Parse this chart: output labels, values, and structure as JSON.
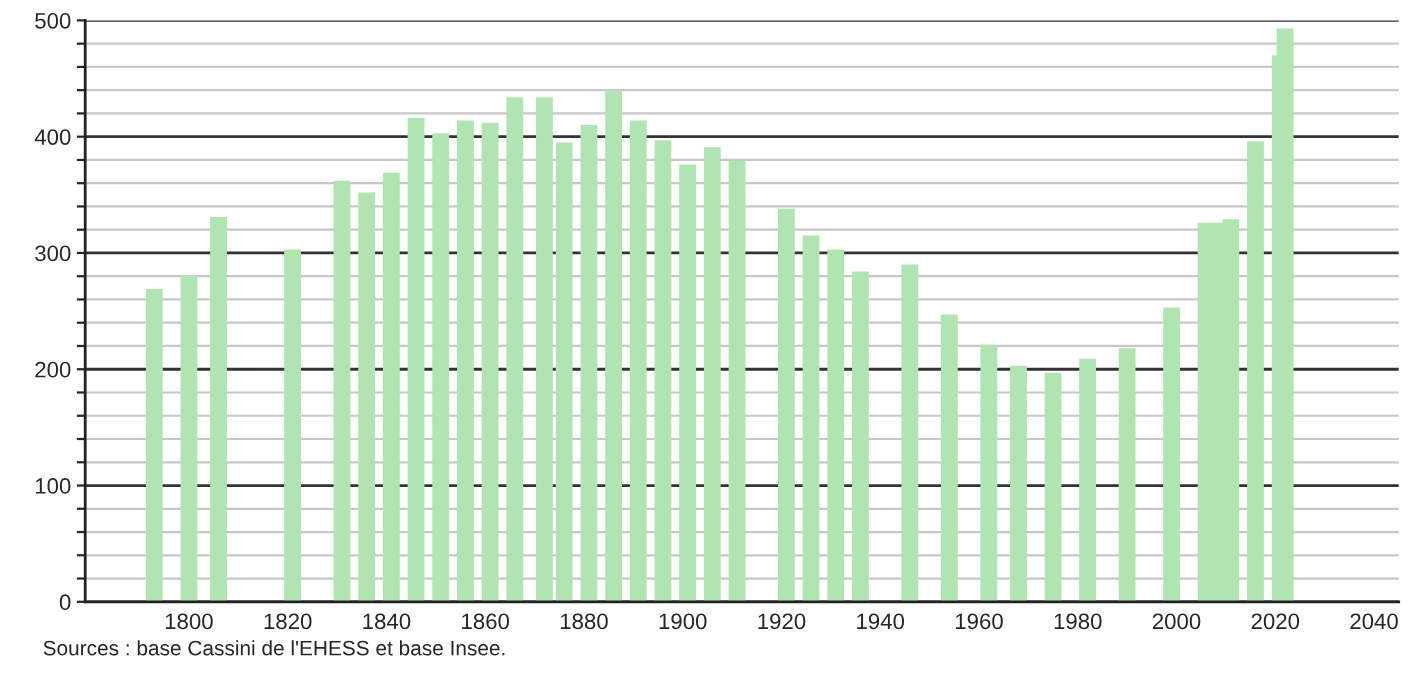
{
  "chart_data": {
    "type": "bar",
    "x": [
      1793,
      1800,
      1806,
      1821,
      1831,
      1836,
      1841,
      1846,
      1851,
      1856,
      1861,
      1866,
      1872,
      1876,
      1881,
      1886,
      1891,
      1896,
      1901,
      1906,
      1911,
      1921,
      1926,
      1931,
      1936,
      1946,
      1954,
      1962,
      1968,
      1975,
      1982,
      1990,
      1999,
      2006,
      2008,
      2011,
      2016,
      2021,
      2022
    ],
    "values": [
      269,
      281,
      331,
      303,
      362,
      352,
      369,
      416,
      403,
      414,
      412,
      434,
      434,
      395,
      410,
      439,
      414,
      397,
      376,
      391,
      379,
      338,
      315,
      303,
      284,
      290,
      247,
      221,
      203,
      197,
      209,
      218,
      253,
      326,
      326,
      329,
      396,
      470,
      493
    ],
    "color": "#b0e4b0",
    "xlim": [
      1779,
      2045
    ],
    "xticks": [
      1800,
      1820,
      1840,
      1860,
      1880,
      1900,
      1920,
      1940,
      1960,
      1980,
      2000,
      2020,
      2040
    ],
    "ylim": [
      0,
      500
    ],
    "yticks": [
      0,
      {
        "value": 20,
        "label": null
      },
      {
        "value": 40,
        "label": null
      },
      {
        "value": 60,
        "label": null
      },
      {
        "value": 80,
        "label": null
      },
      100,
      {
        "value": 120,
        "label": null
      },
      {
        "value": 140,
        "label": null
      },
      {
        "value": 160,
        "label": null
      },
      {
        "value": 180,
        "label": null
      },
      200,
      {
        "value": 220,
        "label": null
      },
      {
        "value": 240,
        "label": null
      },
      {
        "value": 260,
        "label": null
      },
      {
        "value": 280,
        "label": null
      },
      300,
      {
        "value": 320,
        "label": null
      },
      {
        "value": 340,
        "label": null
      },
      {
        "value": 360,
        "label": null
      },
      {
        "value": 380,
        "label": null
      },
      400,
      {
        "value": 420,
        "label": null
      },
      {
        "value": 440,
        "label": null
      },
      {
        "value": 460,
        "label": null
      },
      {
        "value": 480,
        "label": null
      },
      500
    ],
    "grid": "y",
    "annotations": [
      "Sources : base Cassini de l'EHESS et base Insee."
    ]
  }
}
